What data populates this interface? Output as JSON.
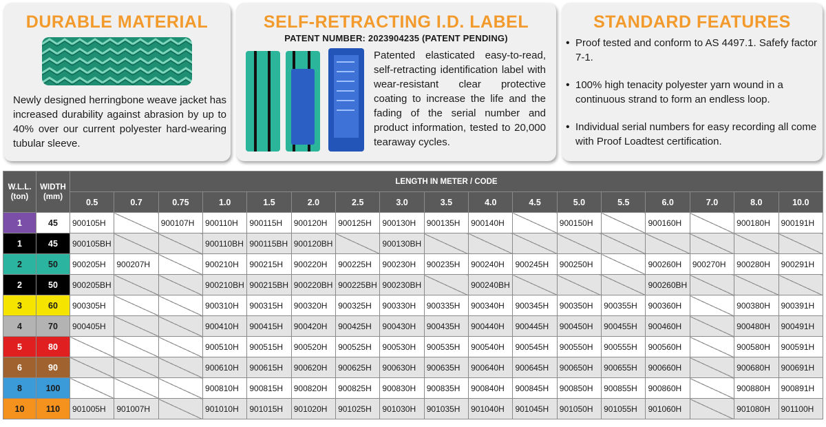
{
  "cards": {
    "durable": {
      "title": "DURABLE MATERIAL",
      "text": "Newly designed herringbone weave jacket has increased durability against abrasion by up to 40% over our current polyester hard-wearing tubular sleeve."
    },
    "label": {
      "title": "SELF-RETRACTING I.D. LABEL",
      "patent": "PATENT NUMBER: 2023904235  (PATENT PENDING)",
      "text": "Patented elasticated easy-to-read, self-retracting identification label with wear-resistant clear protective coating to increase the life and the fading of the serial number and product information, tested to 20,000 tearaway cycles."
    },
    "features": {
      "title": "STANDARD FEATURES",
      "items": [
        "Proof tested and conform to AS 4497.1. Safefy factor 7-1.",
        "100% high tenacity polyester yarn wound in a continuous strand to form an endless loop.",
        "Individual serial numbers for easy recording all come with Proof Loadtest certification."
      ]
    }
  },
  "table": {
    "col_wll": "W.L.L.\n(ton)",
    "col_width": "WIDTH\n(mm)",
    "length_header": "LENGTH IN METER / CODE",
    "lengths": [
      "0.5",
      "0.7",
      "0.75",
      "1.0",
      "1.5",
      "2.0",
      "2.5",
      "3.0",
      "3.5",
      "4.0",
      "4.5",
      "5.0",
      "5.5",
      "6.0",
      "7.0",
      "8.0",
      "10.0"
    ],
    "rows": [
      {
        "wll": "1",
        "width": "45",
        "wll_color": "#7b4fa8",
        "width_color": "#ffffff",
        "codes": [
          "900105H",
          "",
          "900107H",
          "900110H",
          "900115H",
          "900120H",
          "900125H",
          "900130H",
          "900135H",
          "900140H",
          "",
          "900150H",
          "",
          "900160H",
          "",
          "900180H",
          "900191H"
        ]
      },
      {
        "wll": "1",
        "width": "45",
        "wll_color": "#000000",
        "width_color": "#000000",
        "codes": [
          "900105BH",
          "",
          "",
          "900110BH",
          "900115BH",
          "900120BH",
          "",
          "900130BH",
          "",
          "",
          "",
          "",
          "",
          "",
          "",
          "",
          ""
        ]
      },
      {
        "wll": "2",
        "width": "50",
        "wll_color": "#2bb5a0",
        "width_color": "#2bb5a0",
        "codes": [
          "900205H",
          "900207H",
          "",
          "900210H",
          "900215H",
          "900220H",
          "900225H",
          "900230H",
          "900235H",
          "900240H",
          "900245H",
          "900250H",
          "",
          "900260H",
          "900270H",
          "900280H",
          "900291H"
        ]
      },
      {
        "wll": "2",
        "width": "50",
        "wll_color": "#000000",
        "width_color": "#000000",
        "codes": [
          "900205BH",
          "",
          "",
          "900210BH",
          "900215BH",
          "900220BH",
          "900225BH",
          "900230BH",
          "",
          "900240BH",
          "",
          "",
          "",
          "900260BH",
          "",
          "",
          ""
        ]
      },
      {
        "wll": "3",
        "width": "60",
        "wll_color": "#f5e400",
        "width_color": "#f5e400",
        "codes": [
          "900305H",
          "",
          "",
          "900310H",
          "900315H",
          "900320H",
          "900325H",
          "900330H",
          "900335H",
          "900340H",
          "900345H",
          "900350H",
          "900355H",
          "900360H",
          "",
          "900380H",
          "900391H"
        ]
      },
      {
        "wll": "4",
        "width": "70",
        "wll_color": "#b3b3b3",
        "width_color": "#b3b3b3",
        "codes": [
          "900405H",
          "",
          "",
          "900410H",
          "900415H",
          "900420H",
          "900425H",
          "900430H",
          "900435H",
          "900440H",
          "900445H",
          "900450H",
          "900455H",
          "900460H",
          "",
          "900480H",
          "900491H"
        ]
      },
      {
        "wll": "5",
        "width": "80",
        "wll_color": "#e02020",
        "width_color": "#e02020",
        "codes": [
          "",
          "",
          "",
          "900510H",
          "900515H",
          "900520H",
          "900525H",
          "900530H",
          "900535H",
          "900540H",
          "900545H",
          "900550H",
          "900555H",
          "900560H",
          "",
          "900580H",
          "900591H"
        ]
      },
      {
        "wll": "6",
        "width": "90",
        "wll_color": "#a0622e",
        "width_color": "#a0622e",
        "codes": [
          "",
          "",
          "",
          "900610H",
          "900615H",
          "900620H",
          "900625H",
          "900630H",
          "900635H",
          "900640H",
          "900645H",
          "900650H",
          "900655H",
          "900660H",
          "",
          "900680H",
          "900691H"
        ]
      },
      {
        "wll": "8",
        "width": "100",
        "wll_color": "#3b9ad8",
        "width_color": "#3b9ad8",
        "codes": [
          "",
          "",
          "",
          "900810H",
          "900815H",
          "900820H",
          "900825H",
          "900830H",
          "900835H",
          "900840H",
          "900845H",
          "900850H",
          "900855H",
          "900860H",
          "",
          "900880H",
          "900891H"
        ]
      },
      {
        "wll": "10",
        "width": "110",
        "wll_color": "#f5921e",
        "width_color": "#f5921e",
        "codes": [
          "901005H",
          "901007H",
          "",
          "901010H",
          "901015H",
          "901020H",
          "901025H",
          "901030H",
          "901035H",
          "901040H",
          "901045H",
          "901050H",
          "901055H",
          "901060H",
          "",
          "901080H",
          "901100H"
        ]
      }
    ]
  }
}
